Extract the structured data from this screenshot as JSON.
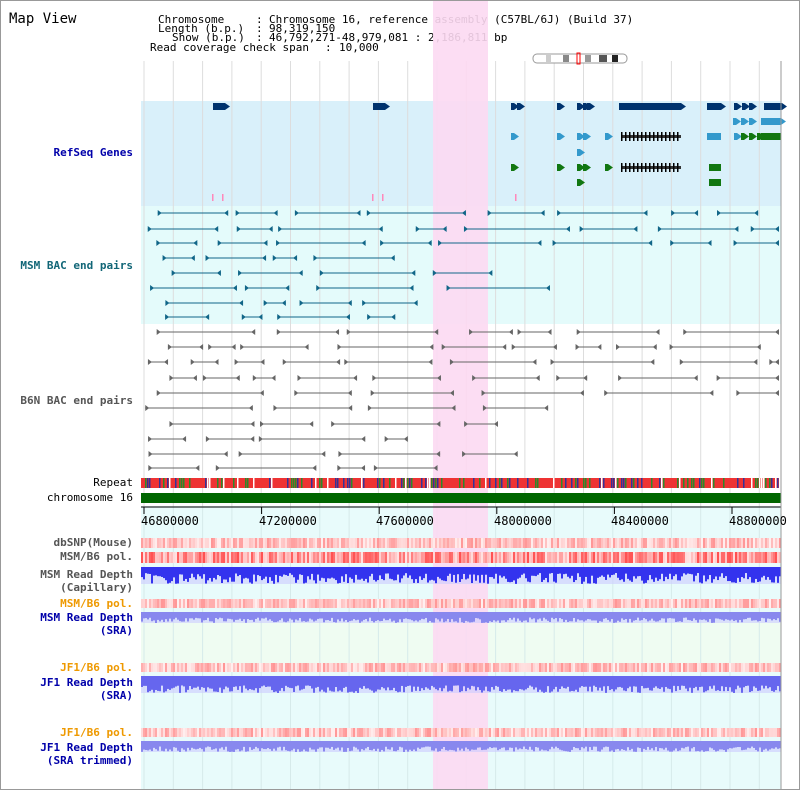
{
  "header": {
    "title": "Map View",
    "chromosome_label": "Chromosome",
    "chromosome_value": "Chromosome 16, reference assembly (C57BL/6J) (Build 37)",
    "length_label": "Length (b.p.)",
    "length_value": "98,319,150",
    "show_label": "Show (b.p.)",
    "show_value": "46,792,271-48,979,081 : 2,186,811 bp",
    "coverage_label": "Read coverage check span",
    "coverage_value": "10,000"
  },
  "tracks": {
    "refseq": "RefSeq Genes",
    "msm_bac": "MSM BAC end pairs",
    "b6n_bac": "B6N BAC end pairs",
    "repeat": "Repeat",
    "chromosome": "chromosome 16",
    "dbsnp": "dbSNP(Mouse)",
    "msm_b6_pol": "MSM/B6 pol.",
    "msm_depth_cap_1": "MSM Read Depth",
    "msm_depth_cap_2": "(Capillary)",
    "msm_b6_pol_2": "MSM/B6 pol.",
    "msm_depth_sra_1": "MSM Read Depth",
    "msm_depth_sra_2": "(SRA)",
    "jf1_b6_pol": "JF1/B6 pol.",
    "jf1_depth_sra_1": "JF1 Read Depth",
    "jf1_depth_sra_2": "(SRA)",
    "jf1_b6_pol_2": "JF1/B6 pol.",
    "jf1_depth_trim_1": "JF1 Read Depth",
    "jf1_depth_trim_2": "(SRA trimmed)"
  },
  "axis": {
    "ticks": [
      "46800000",
      "47200000",
      "47600000",
      "48000000",
      "48400000",
      "48800000"
    ]
  },
  "colors": {
    "refseq_bg": "#d9f0fa",
    "bac_bg": "#e4fbfb",
    "highlight": "#fcd9f2",
    "chromosome_bar": "#006600",
    "refseq_dark": "#00336e",
    "refseq_mid": "#3399cc",
    "refseq_green": "#117711",
    "msm_bac": "#116688",
    "b6n_bac": "#666666",
    "depth_blue": "#3333ee"
  }
}
